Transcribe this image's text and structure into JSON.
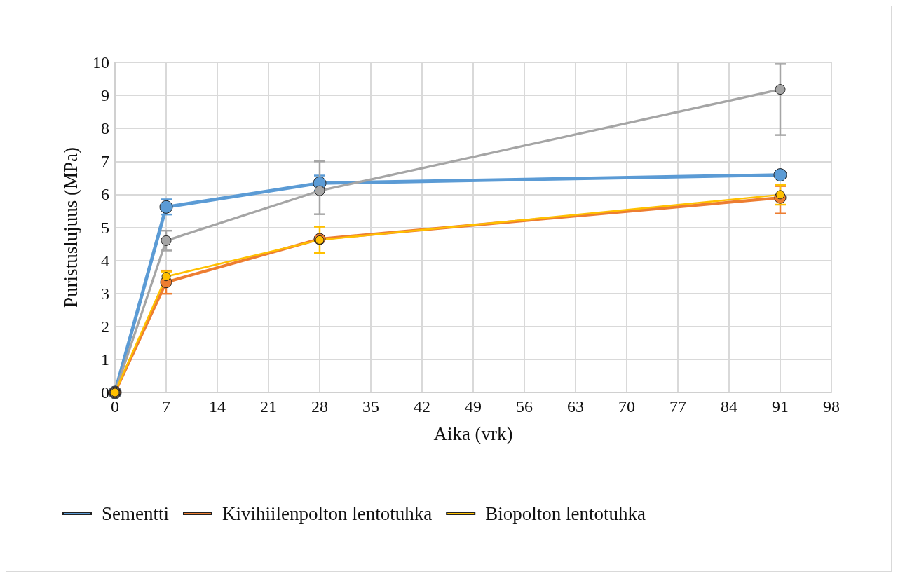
{
  "chart_data": {
    "type": "line",
    "xlabel": "Aika (vrk)",
    "ylabel": "Puristuslujuus (MPa)",
    "x": [
      0,
      7,
      28,
      91
    ],
    "series": [
      {
        "name": "Sementti",
        "color": "#5b9bd5",
        "values": [
          0,
          5.62,
          6.34,
          6.59
        ],
        "errors": [
          null,
          0.23,
          0.23,
          0.1
        ]
      },
      {
        "name": "Kivihiilenpolton lentotuhka",
        "color": "#ed7d31",
        "values": [
          0,
          3.34,
          4.65,
          5.9
        ],
        "errors": [
          null,
          0.35,
          null,
          [
            5.42,
            6.25
          ]
        ]
      },
      {
        "color": "#a5a5a5",
        "values": [
          0,
          4.6,
          6.11,
          9.18
        ],
        "errors": [
          null,
          0.3,
          [
            5.4,
            7.0
          ],
          [
            7.8,
            9.95
          ]
        ]
      },
      {
        "name": "Biopolton lentotuhka",
        "color": "#ffc000",
        "values": [
          0,
          3.51,
          4.62,
          5.99
        ],
        "errors": [
          null,
          0.15,
          0.4,
          0.3
        ]
      }
    ],
    "xlim": [
      0,
      98
    ],
    "xticks": [
      0,
      7,
      14,
      21,
      28,
      35,
      42,
      49,
      56,
      63,
      70,
      77,
      84,
      91,
      98
    ],
    "ylim": [
      0,
      10
    ],
    "yticks": [
      0,
      1,
      2,
      3,
      4,
      5,
      6,
      7,
      8,
      9,
      10
    ],
    "grid": true,
    "legend": "bottom",
    "marker": "circle",
    "line_style": "solid"
  }
}
